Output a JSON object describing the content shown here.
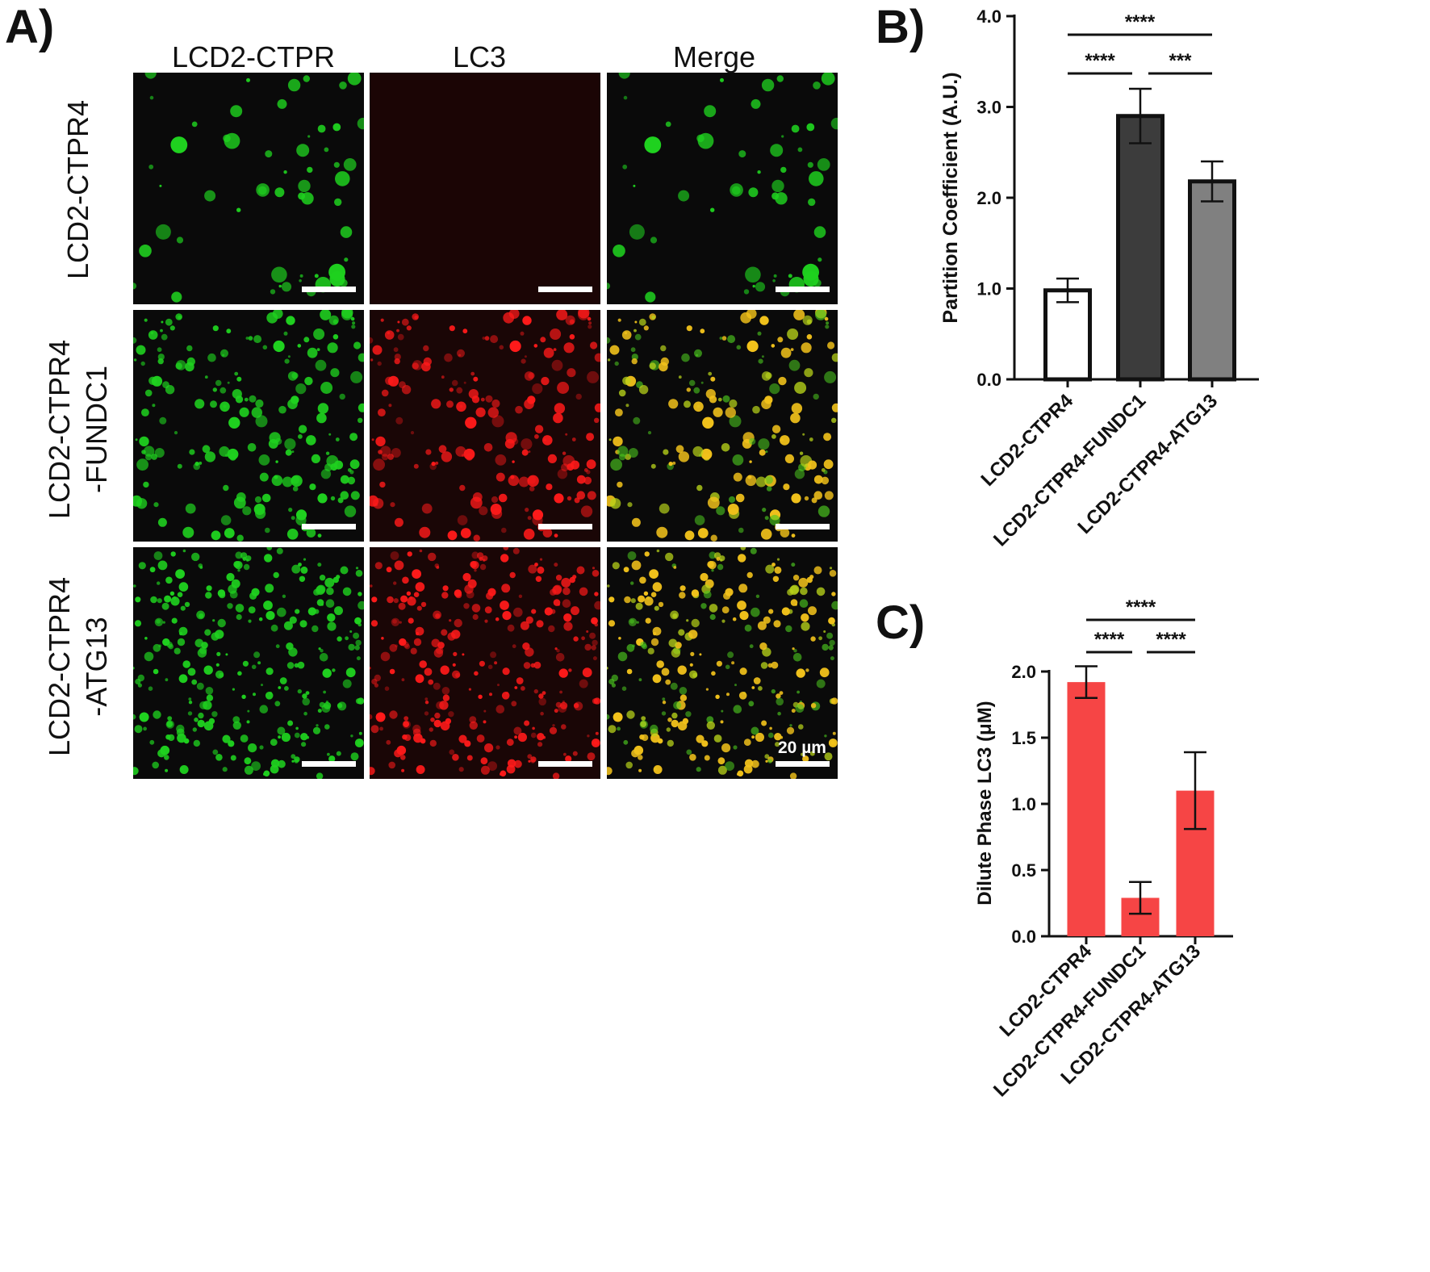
{
  "panel_labels": {
    "a": "A)",
    "b": "B)",
    "c": "C)"
  },
  "microscopy": {
    "columns": [
      "LCD2-CTPR",
      "LC3",
      "Merge"
    ],
    "rows": [
      {
        "line1": "LCD2-CTPR4",
        "line2": ""
      },
      {
        "line1": "LCD2-CTPR4",
        "line2": "-FUNDC1"
      },
      {
        "line1": "LCD2-CTPR4",
        "line2": "-ATG13"
      }
    ],
    "scale_bar_label": "20 µm",
    "colors": {
      "green_channel": "#1fd11f",
      "red_channel": "#ff1a1a",
      "merge_overlap": "#f2c21b",
      "background": "#0a0a0a"
    }
  },
  "chart_data": [
    {
      "type": "bar",
      "panel": "B)",
      "categories": [
        "LCD2-CTPR4",
        "LCD2-CTPR4-FUNDC1",
        "LCD2-CTPR4-ATG13"
      ],
      "values": [
        0.98,
        2.9,
        2.18
      ],
      "errors": [
        0.13,
        0.3,
        0.22
      ],
      "bar_colors": [
        "#ffffff",
        "#3c3c3c",
        "#808080"
      ],
      "ylabel": "Partition Coefficient (A.U.)",
      "ylim": [
        0,
        4.0
      ],
      "yticks": [
        "0.0",
        "1.0",
        "2.0",
        "3.0",
        "4.0"
      ],
      "significance": [
        {
          "from": 0,
          "to": 2,
          "label": "****"
        },
        {
          "from": 0,
          "to": 1,
          "label": "****"
        },
        {
          "from": 1,
          "to": 2,
          "label": "***"
        }
      ]
    },
    {
      "type": "bar",
      "panel": "C)",
      "categories": [
        "LCD2-CTPR4",
        "LCD2-CTPR4-FUNDC1",
        "LCD2-CTPR4-ATG13"
      ],
      "values": [
        1.92,
        0.29,
        1.1
      ],
      "errors": [
        0.12,
        0.12,
        0.29
      ],
      "bar_colors": [
        "#f64545",
        "#f64545",
        "#f64545"
      ],
      "ylabel": "Dilute Phase LC3 (μM)",
      "ylim": [
        0,
        2.0
      ],
      "yticks": [
        "0.0",
        "0.5",
        "1.0",
        "1.5",
        "2.0"
      ],
      "significance": [
        {
          "from": 0,
          "to": 2,
          "label": "****"
        },
        {
          "from": 0,
          "to": 1,
          "label": "****"
        },
        {
          "from": 1,
          "to": 2,
          "label": "****"
        }
      ]
    }
  ]
}
